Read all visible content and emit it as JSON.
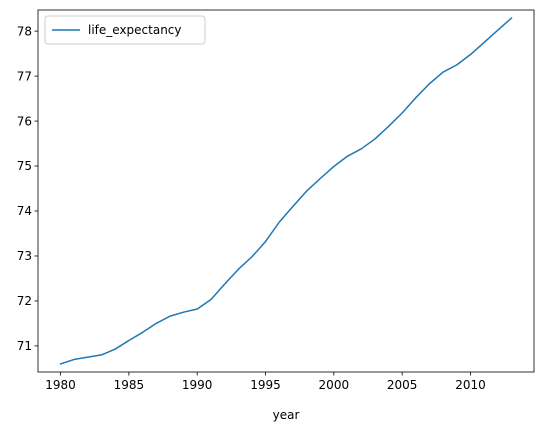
{
  "chart_data": {
    "type": "line",
    "title": "",
    "xlabel": "year",
    "ylabel": "",
    "xlim": [
      1978.35,
      2014.65
    ],
    "ylim": [
      70.42,
      78.47
    ],
    "grid": false,
    "legend_position": "top-left",
    "x_ticks": [
      1980,
      1985,
      1990,
      1995,
      2000,
      2005,
      2010
    ],
    "x_tick_labels": [
      "1980",
      "1985",
      "1990",
      "1995",
      "2000",
      "2005",
      "2010"
    ],
    "y_ticks": [
      71,
      72,
      73,
      74,
      75,
      76,
      77,
      78
    ],
    "y_tick_labels": [
      "71",
      "72",
      "73",
      "74",
      "75",
      "76",
      "77",
      "78"
    ],
    "series": [
      {
        "name": "life_expectancy",
        "color": "#1f77b4",
        "x": [
          1980,
          1981,
          1982,
          1983,
          1984,
          1985,
          1986,
          1987,
          1988,
          1989,
          1990,
          1991,
          1992,
          1993,
          1994,
          1995,
          1996,
          1997,
          1998,
          1999,
          2000,
          2001,
          2002,
          2003,
          2004,
          2005,
          2006,
          2007,
          2008,
          2009,
          2010,
          2011,
          2012,
          2013
        ],
        "values": [
          70.6,
          70.7,
          70.75,
          70.8,
          70.93,
          71.12,
          71.3,
          71.5,
          71.66,
          71.75,
          71.82,
          72.03,
          72.37,
          72.7,
          72.98,
          73.32,
          73.75,
          74.1,
          74.44,
          74.72,
          74.99,
          75.22,
          75.38,
          75.6,
          75.88,
          76.18,
          76.52,
          76.83,
          77.09,
          77.25,
          77.48,
          77.75,
          78.02,
          78.29
        ]
      }
    ]
  }
}
